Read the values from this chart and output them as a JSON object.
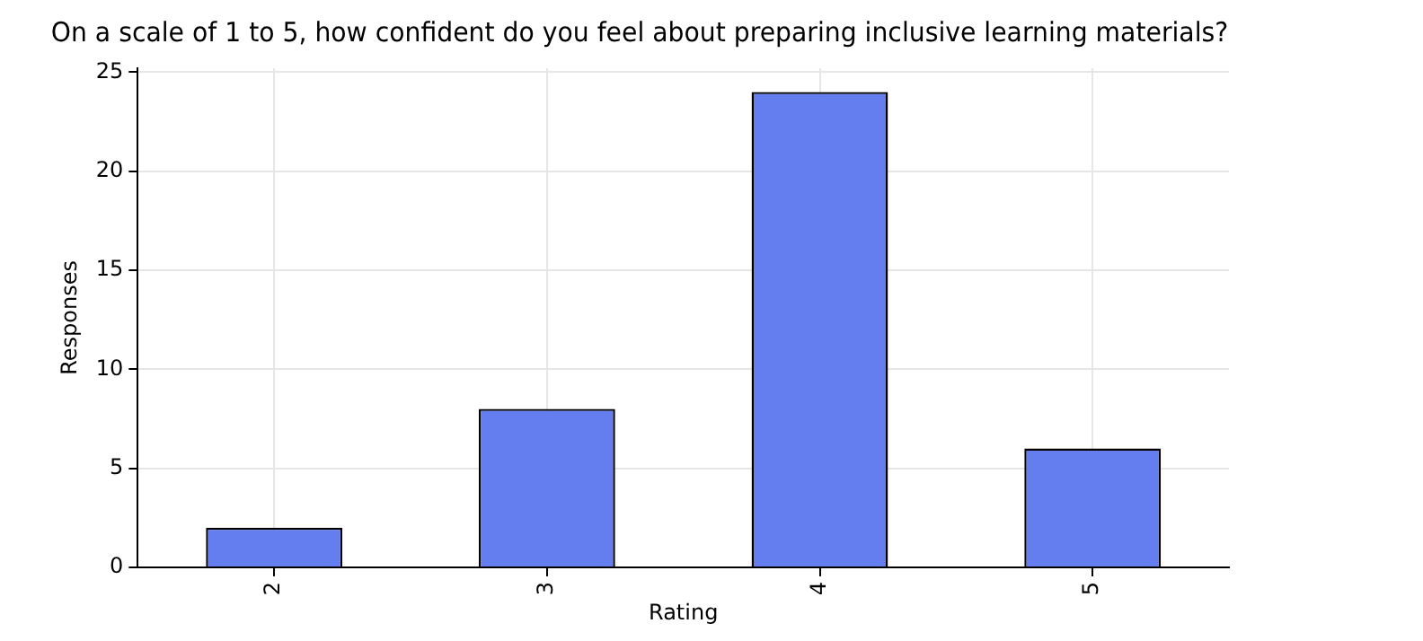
{
  "chart_data": {
    "type": "bar",
    "title": "On a scale of 1 to 5, how confident do you feel about preparing inclusive learning materials?",
    "xlabel": "Rating",
    "ylabel": "Responses",
    "categories": [
      "2",
      "3",
      "4",
      "5"
    ],
    "series": [
      {
        "color": "#647ef0",
        "values": [
          2,
          8,
          24,
          6
        ]
      }
    ],
    "ylim": [
      0,
      25.2
    ],
    "yticks": [
      0,
      5,
      10,
      15,
      20,
      25
    ],
    "grid": true,
    "legend": false
  }
}
